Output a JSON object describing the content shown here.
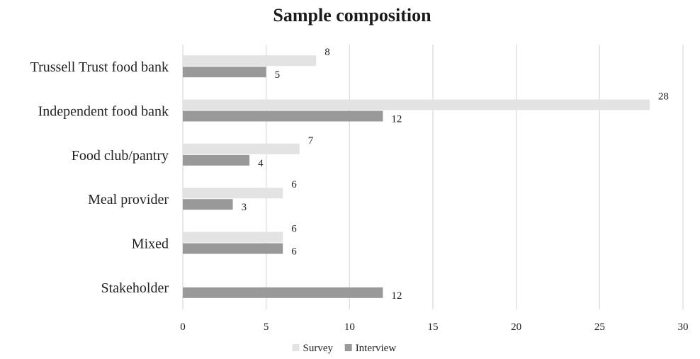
{
  "chart_data": {
    "type": "bar",
    "orientation": "horizontal",
    "title": "Sample composition",
    "categories": [
      "Trussell Trust food bank",
      "Independent food bank",
      "Food club/pantry",
      "Meal provider",
      "Mixed",
      "Stakeholder"
    ],
    "series": [
      {
        "name": "Survey",
        "values": [
          8,
          28,
          7,
          6,
          6,
          null
        ],
        "color": "#e3e3e3"
      },
      {
        "name": "Interview",
        "values": [
          5,
          12,
          4,
          3,
          6,
          12
        ],
        "color": "#999999"
      }
    ],
    "xlim": [
      0,
      30
    ],
    "xticks": [
      0,
      5,
      10,
      15,
      20,
      25,
      30
    ],
    "xlabel": "",
    "ylabel": "",
    "grid": "vertical",
    "legend": "bottom",
    "gridline_color": "#d9d9d9"
  }
}
